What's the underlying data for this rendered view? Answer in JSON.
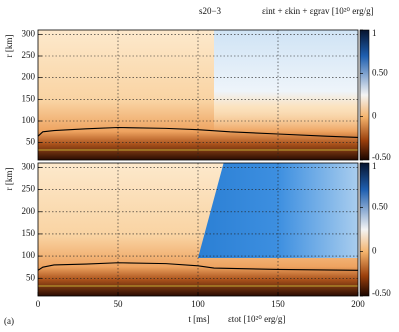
{
  "chart_data": [
    {
      "type": "heatmap",
      "title": "s20−3",
      "colorbar_label": "εint + εkin + εgrav [10²⁰ erg/g]",
      "ylabel": "r [km]",
      "xlim": [
        0,
        200
      ],
      "ylim": [
        10,
        310
      ],
      "yticks": [
        50,
        100,
        150,
        200,
        250,
        300
      ],
      "clim": [
        -0.5,
        1
      ],
      "cticks": [
        {
          "value": -0.5,
          "label": "-0.50"
        },
        0,
        {
          "value": 0.5,
          "label": "0.50"
        },
        1
      ],
      "grid": true,
      "contour": {
        "color": "#000000",
        "x": [
          0,
          3,
          10,
          30,
          50,
          80,
          100,
          120,
          150,
          180,
          200
        ],
        "y": [
          65,
          75,
          78,
          82,
          85,
          83,
          80,
          75,
          70,
          65,
          62
        ]
      }
    },
    {
      "type": "heatmap",
      "colorbar_label": "εtot [10²⁰ erg/g]",
      "xlabel": "t [ms]",
      "ylabel": "r [km]",
      "annotation": "(a)",
      "xlim": [
        0,
        200
      ],
      "ylim": [
        10,
        310
      ],
      "xticks": [
        0,
        50,
        100,
        150,
        200
      ],
      "yticks": [
        50,
        100,
        150,
        200,
        250,
        300
      ],
      "clim": [
        -0.5,
        1
      ],
      "cticks": [
        {
          "value": -0.5,
          "label": "-0.50"
        },
        0,
        {
          "value": 0.5,
          "label": "0.50"
        },
        1
      ],
      "grid": true,
      "contour": {
        "color": "#000000",
        "x": [
          0,
          3,
          10,
          30,
          50,
          80,
          100,
          110,
          150,
          200
        ],
        "y": [
          68,
          75,
          80,
          82,
          85,
          83,
          78,
          73,
          70,
          68
        ]
      }
    }
  ]
}
